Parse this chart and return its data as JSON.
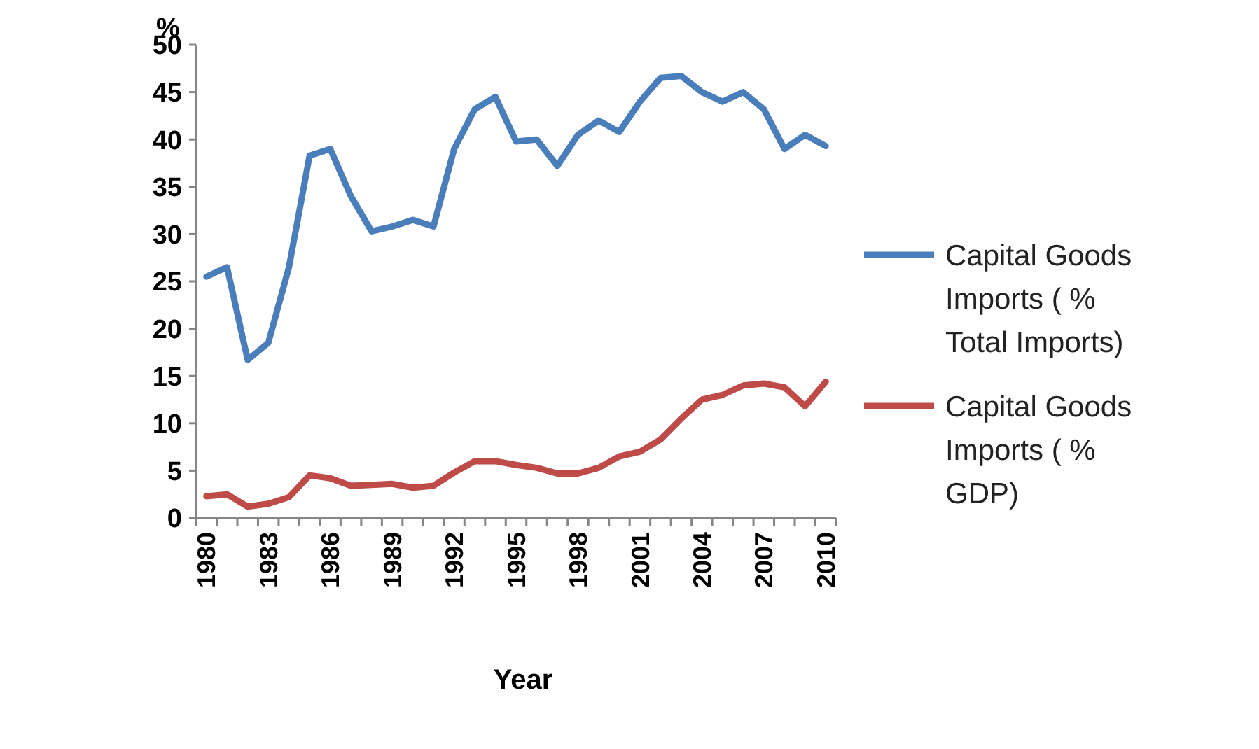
{
  "chart_data": {
    "type": "line",
    "ylabel": "%",
    "xlabel": "Year",
    "categories": [
      "1980",
      null,
      null,
      "1983",
      null,
      null,
      "1986",
      null,
      null,
      "1989",
      null,
      null,
      "1992",
      null,
      null,
      "1995",
      null,
      null,
      "1998",
      null,
      null,
      "2001",
      null,
      null,
      "2004",
      null,
      null,
      "2007",
      null,
      null,
      "2010"
    ],
    "series": [
      {
        "name": "Capital Goods Imports ( % Total Imports)",
        "color": "#4a7ebb",
        "values": [
          25.5,
          26.5,
          16.7,
          18.5,
          26.5,
          38.3,
          39,
          34,
          30.3,
          30.8,
          31.5,
          30.8,
          39,
          43.2,
          44.5,
          39.8,
          40,
          37.2,
          40.5,
          42,
          40.8,
          44,
          46.5,
          46.7,
          45,
          44,
          45,
          43.2,
          39,
          40.5,
          39.3
        ]
      },
      {
        "name": "Capital Goods Imports ( % GDP)",
        "color": "#be4b48",
        "values": [
          2.3,
          2.5,
          1.2,
          1.5,
          2.2,
          4.5,
          4.2,
          3.4,
          3.5,
          3.6,
          3.2,
          3.4,
          4.8,
          6,
          6,
          5.6,
          5.3,
          4.7,
          4.7,
          5.3,
          6.5,
          7,
          8.3,
          10.5,
          12.5,
          13,
          14,
          14.2,
          13.8,
          11.8,
          14.4
        ]
      }
    ],
    "ylim": [
      0,
      50
    ],
    "yticks": [
      0,
      5,
      10,
      15,
      20,
      25,
      30,
      35,
      40,
      45,
      50
    ],
    "grid": false,
    "legend": "right",
    "marker": "none",
    "line_style": "solid"
  }
}
